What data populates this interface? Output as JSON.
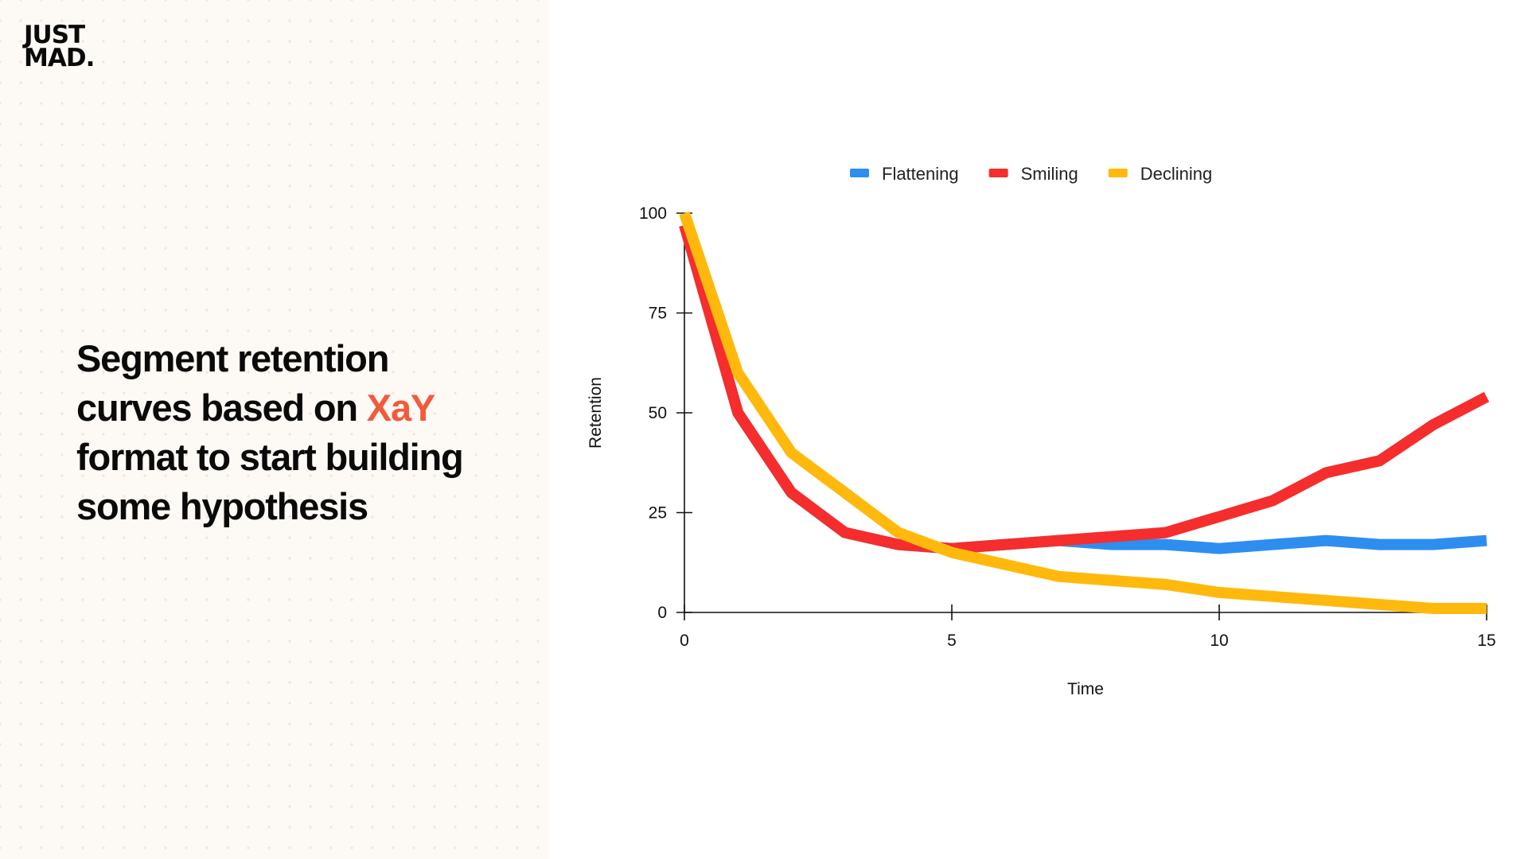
{
  "brand": {
    "logo_line1": "JUST",
    "logo_line2": "MAD."
  },
  "headline": {
    "line1": "Segment retention",
    "line2_pre": "curves based on ",
    "line2_accent": "XaY",
    "line3": "format to start building",
    "line4": "some hypothesis",
    "accent_color": "#f25a3c"
  },
  "chart_data": {
    "type": "line",
    "title": "",
    "xlabel": "Time",
    "ylabel": "Retention",
    "xlim": [
      0,
      15
    ],
    "ylim": [
      0,
      100
    ],
    "x_ticks": [
      0,
      5,
      10,
      15
    ],
    "y_ticks": [
      0,
      25,
      50,
      75,
      100
    ],
    "grid": false,
    "legend_position": "top",
    "x": [
      0,
      1,
      2,
      3,
      4,
      5,
      6,
      7,
      8,
      9,
      10,
      11,
      12,
      13,
      14,
      15
    ],
    "series": [
      {
        "name": "Flattening",
        "color": "#2d8ef0",
        "values": [
          97,
          50,
          30,
          20,
          17,
          16,
          17,
          18,
          17,
          17,
          16,
          17,
          18,
          17,
          17,
          18
        ]
      },
      {
        "name": "Smiling",
        "color": "#f52d2d",
        "values": [
          97,
          50,
          30,
          20,
          17,
          16,
          17,
          18,
          19,
          20,
          24,
          28,
          35,
          38,
          47,
          54
        ]
      },
      {
        "name": "Declining",
        "color": "#ffb90d",
        "values": [
          100,
          60,
          40,
          30,
          20,
          15,
          12,
          9,
          8,
          7,
          5,
          4,
          3,
          2,
          1,
          1
        ]
      }
    ]
  }
}
